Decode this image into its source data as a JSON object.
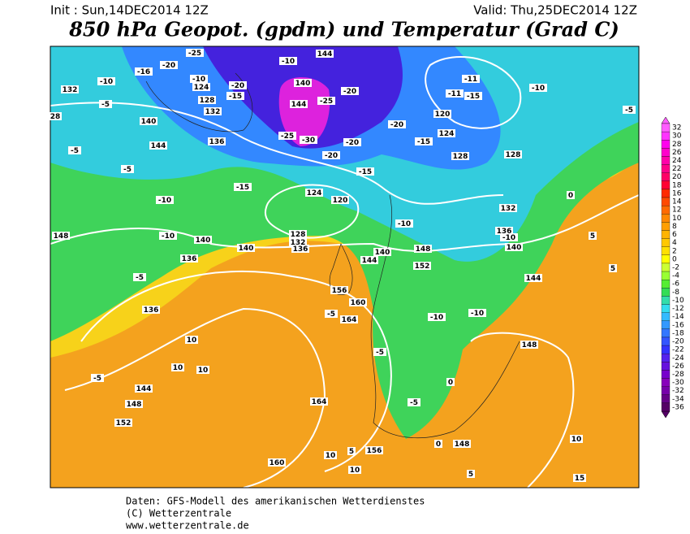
{
  "header": {
    "init": "Init : Sun,14DEC2014 12Z",
    "valid": "Valid: Thu,25DEC2014 12Z",
    "title": "850 hPa Geopot. (gpdm) und Temperatur (Grad C)"
  },
  "color_scale": {
    "values": [
      32,
      30,
      28,
      26,
      24,
      22,
      20,
      18,
      16,
      14,
      12,
      10,
      8,
      6,
      4,
      2,
      0,
      -2,
      -4,
      -6,
      -8,
      -10,
      -12,
      -14,
      -16,
      -18,
      -20,
      -22,
      -24,
      -26,
      -28,
      -30,
      -32,
      -34,
      -36
    ],
    "colors": [
      "#ff5cff",
      "#ff33ff",
      "#ff00ee",
      "#ff00cc",
      "#ff00aa",
      "#ff0088",
      "#ff0066",
      "#ff0033",
      "#ff2a00",
      "#ff4a00",
      "#ff6a00",
      "#ff8800",
      "#ff9f00",
      "#ffb400",
      "#ffc800",
      "#ffe000",
      "#ffff00",
      "#ccff33",
      "#99ff33",
      "#55ee33",
      "#33dd55",
      "#33ddaa",
      "#33ddee",
      "#33bbff",
      "#3399ff",
      "#3377ff",
      "#3355ff",
      "#3333ff",
      "#5522ee",
      "#6611dd",
      "#7700cc",
      "#8800bb",
      "#7700aa",
      "#660088",
      "#550066"
    ]
  },
  "map": {
    "labels": [
      "-25",
      "-20",
      "-16",
      "-10",
      "-10",
      "124",
      "-20",
      "128",
      "-15",
      "132",
      "132",
      "-5",
      "28",
      "140",
      "144",
      "136",
      "-5",
      "-5",
      "-10",
      "-10",
      "140",
      "136",
      "140",
      "148",
      "-5",
      "144",
      "-10",
      "140",
      "144",
      "-20",
      "-25",
      "-25",
      "-30",
      "-20",
      "-20",
      "-15",
      "-20",
      "-15",
      "120",
      "124",
      "128",
      "128",
      "-11",
      "-11",
      "-15",
      "-10",
      "-5",
      "132",
      "136",
      "-10",
      "140",
      "0",
      "-10",
      "148",
      "152",
      "140",
      "144",
      "128",
      "132",
      "136",
      "120",
      "124",
      "-15",
      "156",
      "160",
      "164",
      "-5",
      "136",
      "10",
      "10",
      "10",
      "144",
      "148",
      "152",
      "-5",
      "164",
      "160",
      "10",
      "10",
      "5",
      "156",
      "0",
      "148",
      "5",
      "10",
      "15",
      "144",
      "148",
      "-5",
      "-10",
      "-10",
      "-5",
      "0",
      "5",
      "5"
    ]
  },
  "footer": {
    "line1": "Daten: GFS-Modell des amerikanischen Wetterdienstes",
    "line2": "(C) Wetterzentrale",
    "line3": "www.wetterzentrale.de"
  }
}
